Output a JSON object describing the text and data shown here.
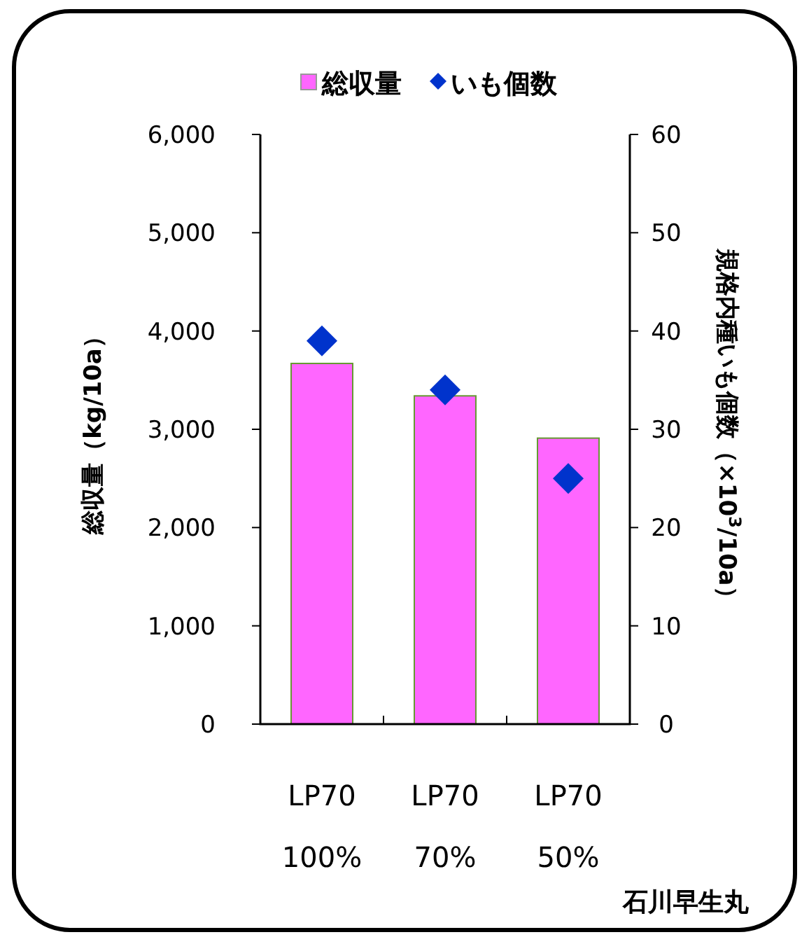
{
  "chart_data": {
    "type": "bar",
    "categories": [
      "LP70 100%",
      "LP70 70%",
      "LP70 50%"
    ],
    "series": [
      {
        "name": "総収量",
        "color": "#ff66ff",
        "values": [
          3670,
          3340,
          2910
        ]
      },
      {
        "name": "いも個数",
        "type": "scatter",
        "axis": "y2",
        "color": "#0033cc",
        "marker": "diamond",
        "values": [
          39,
          34,
          25
        ]
      }
    ],
    "ylabel": "総収量（kg/10a）",
    "y2label": "規格内種いも個数（×10$^{3}$/10a）",
    "ylim": [
      0,
      6000
    ],
    "yticks": [
      0,
      {
        "value": 1000,
        "label": "1,000"
      },
      {
        "value": 2000,
        "label": "2,000"
      },
      {
        "value": 3000,
        "label": "3,000"
      },
      {
        "value": 4000,
        "label": "4,000"
      },
      {
        "value": 5000,
        "label": "5,000"
      },
      {
        "value": 6000,
        "label": "6,000"
      }
    ],
    "y2lim": [
      0,
      60
    ],
    "y2ticks": [
      0,
      10,
      20,
      30,
      40,
      50,
      60
    ],
    "legend": "top",
    "grid": false,
    "annotations": [
      "石川早生丸"
    ]
  }
}
